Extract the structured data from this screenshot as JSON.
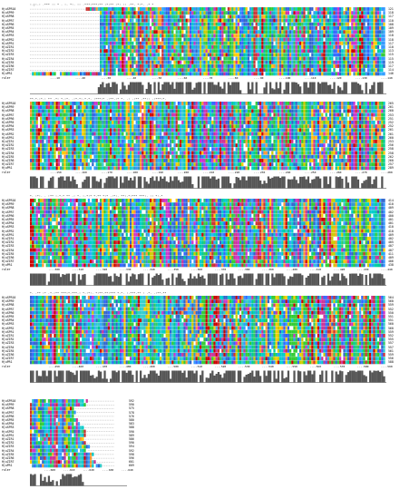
{
  "sequences": [
    "HjuSPR10",
    "HjuSPR9",
    "HjuSPR8",
    "HjuSPR7",
    "HjuSPR6",
    "HjuSPR5",
    "HjuSPR4",
    "HjuSPR3",
    "HjuSPR2",
    "HjuSPR1",
    "HjuZIR1",
    "HjuZIR2",
    "HjuZIR3",
    "HjuZIR4",
    "HjuZIR5",
    "HjuZIR6",
    "HjuZIR7",
    "HjuPR1"
  ],
  "ruler_label": "ruler",
  "blocks": [
    {
      "counts": [
        "121",
        "118",
        "117",
        "110",
        "108",
        "109",
        "109",
        "118",
        "118",
        "117",
        "110",
        "113",
        "115",
        "115",
        "119",
        "117",
        "114",
        "146"
      ],
      "consensus": ":.|:.:  .*** :: * .  :.  *:.   :: .***:***:** :*:** :*: ::  .**.  *:*.  .* * ",
      "ruler_ticks": [
        "10",
        "20",
        "30",
        "40",
        "50",
        "60",
        "70",
        "80",
        "90",
        "100",
        "110",
        "120",
        "130",
        "140"
      ]
    },
    {
      "counts": [
        "265",
        "261",
        "260",
        "253",
        "251",
        "252",
        "252",
        "261",
        "261",
        "260",
        "253",
        "256",
        "258",
        "258",
        "262",
        "260",
        "257",
        "289"
      ],
      "consensus": "**.*.:*.: ** .*: *.:*. .:*.*:.*.*. :***:*  .:**.:* *. .: .:** .**:: .:***:*. ",
      "ruler_ticks": [
        "150",
        "160",
        "170",
        "180",
        "190",
        "200",
        "210",
        "220",
        "230",
        "240",
        "250",
        "260",
        "270",
        "280"
      ]
    },
    {
      "counts": [
        "414",
        "410",
        "409",
        "402",
        "400",
        "401",
        "401",
        "410",
        "410",
        "409",
        "402",
        "405",
        "407",
        "407",
        "411",
        "409",
        "406",
        "438"
      ],
      "consensus": " *. :*:. .  :** :.*.* ** .: *. :.*:* *.** *:*  .:*:. **:.*:***  ***:. ::  *:.*",
      "ruler_ticks": [
        "300",
        "310",
        "320",
        "330",
        "340",
        "350",
        "360",
        "370",
        "380",
        "390",
        "400",
        "410",
        "420",
        "430",
        "440"
      ]
    },
    {
      "counts": [
        "564",
        "560",
        "559",
        "552",
        "550",
        "551",
        "551",
        "560",
        "560",
        "559",
        "552",
        "555",
        "557",
        "557",
        "561",
        "559",
        "556",
        "588"
      ],
      "consensus": "*. .** :* .*.:** ***:*.***.:  *.:*:. *:**.**:*** *.*.  :.***.** :  .*. .:**.** ",
      "ruler_ticks": [
        "450",
        "460",
        "470",
        "480",
        "490",
        "500",
        "510",
        "520",
        "530",
        "540",
        "550",
        "560",
        "570",
        "580",
        "590"
      ]
    },
    {
      "counts": [
        "592",
        "590",
        "575",
        "578",
        "576",
        "580",
        "583",
        "588",
        "590",
        "589",
        "586",
        "590",
        "594",
        "592",
        "598",
        "596",
        "601",
        "609"
      ],
      "consensus": "",
      "ruler_ticks": [
        "600",
        "610",
        "620",
        "630",
        "640"
      ]
    }
  ],
  "colors": {
    "A": "#33cccc",
    "C": "#ffcc00",
    "D": "#cc33cc",
    "E": "#cc3399",
    "F": "#3399ff",
    "G": "#ff9933",
    "H": "#00cccc",
    "I": "#3366cc",
    "K": "#cc3333",
    "L": "#3366ff",
    "M": "#3399cc",
    "N": "#33cc33",
    "P": "#cccc00",
    "Q": "#33cc66",
    "R": "#cc0000",
    "S": "#33cc33",
    "T": "#00cc99",
    "V": "#3366cc",
    "W": "#33aaff",
    "Y": "#00cccc",
    "gap": "#ffffff",
    "histogram": "#555555"
  }
}
